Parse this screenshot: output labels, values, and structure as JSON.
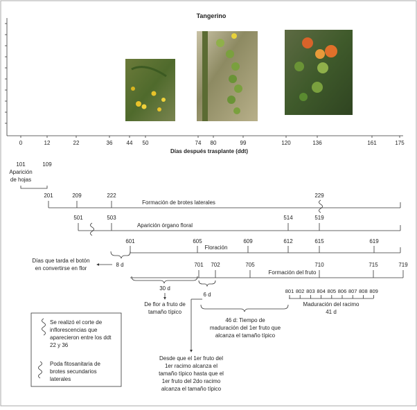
{
  "title": "Tangerino",
  "xlabel": "Días después trasplante (ddt)",
  "ticks": [
    "0",
    "12",
    "22",
    "36",
    "44",
    "50",
    "74",
    "80",
    "99",
    "120",
    "136",
    "161",
    "175"
  ],
  "photos": {
    "flowers": "flower-cluster-photo",
    "green": "green-tomato-truss-photo",
    "red": "ripening-tomato-photo"
  },
  "stages": {
    "hojas": {
      "code_start": "101",
      "code_end": "109",
      "label_line1": "Aparición",
      "label_line2": "de hojas"
    },
    "brotes": {
      "code_start": "201",
      "code_mid1": "209",
      "code_mid2": "222",
      "code_end": "229",
      "label": "Formación de brotes laterales"
    },
    "organo": {
      "code_start": "501",
      "code_mid": "503",
      "code_mid2": "514",
      "code_end": "519",
      "label": "Aparición órgano floral"
    },
    "floracion": {
      "code_start": "601",
      "code_mid1": "605",
      "code_mid2": "609",
      "code_mid3": "612",
      "code_mid4": "615",
      "code_end": "619",
      "label": "Floración"
    },
    "fruto": {
      "code_start": "701",
      "code_mid1": "702",
      "code_mid2": "705",
      "code_mid3": "710",
      "code_mid4": "715",
      "code_end": "719",
      "label": "Formación del fruto"
    },
    "maduracion": {
      "codes": [
        "801",
        "802",
        "803",
        "804",
        "805",
        "806",
        "807",
        "808",
        "809"
      ],
      "label": "Maduración del racimo",
      "days": "41 d"
    }
  },
  "annotations": {
    "boton_days": "8 d",
    "boton_line1": "Días que tarda el botón",
    "boton_line2": "en convertirse en flor",
    "flor_days": "30 d",
    "flor_line1": "De flor a fruto de",
    "flor_line2": "tamaño típico",
    "racimo_days": "6 d",
    "racimo_lines": [
      "Desde que el 1er fruto del",
      "1er racimo alcanza el",
      "tamaño típico hasta que el",
      "1er fruto del 2do racimo",
      "alcanza el tamaño típico"
    ],
    "madur_lines": [
      "46 d: Tiempo de",
      "maduración del 1er fruto que",
      "alcanza el tamaño típico"
    ]
  },
  "legend": {
    "corte_lines": [
      "Se realizó el corte de",
      "inflorescencias que",
      "aparecieron entre los ddt",
      "22 y 36"
    ],
    "poda_lines": [
      "Poda fitosanitaria de",
      "brotes secundarios",
      "laterales"
    ]
  },
  "colors": {
    "line": "#333333",
    "frame": "#aaaaaa"
  }
}
